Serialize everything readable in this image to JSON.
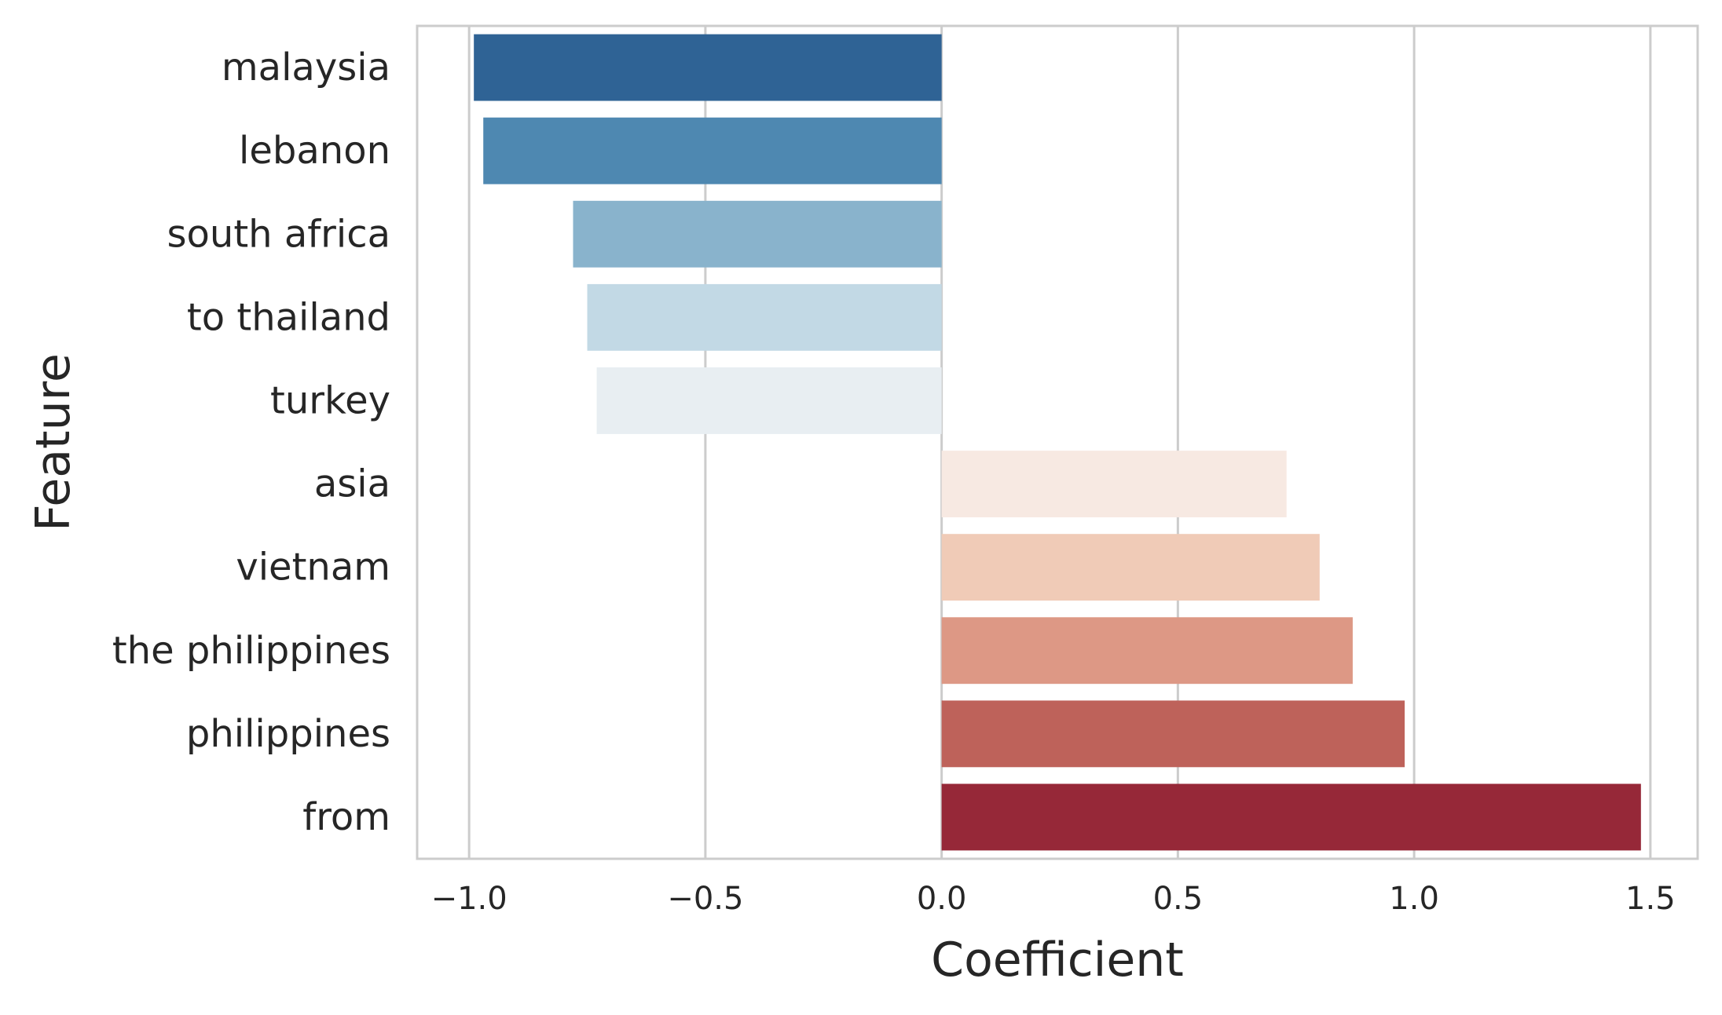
{
  "chart_data": {
    "type": "bar",
    "orientation": "horizontal",
    "title": "",
    "xlabel": "Coefficient",
    "ylabel": "Feature",
    "xlim": [
      -1.11,
      1.6
    ],
    "xticks": [
      -1.0,
      -0.5,
      0.0,
      0.5,
      1.0,
      1.5
    ],
    "xtick_labels": [
      "−1.0",
      "−0.5",
      "0.0",
      "0.5",
      "1.0",
      "1.5"
    ],
    "grid": "vertical",
    "legend": "none",
    "categories": [
      "malaysia",
      "lebanon",
      "south africa",
      "to thailand",
      "turkey",
      "asia",
      "vietnam",
      "the philippines",
      "philippines",
      "from"
    ],
    "values": [
      -0.99,
      -0.97,
      -0.78,
      -0.75,
      -0.73,
      0.73,
      0.8,
      0.87,
      0.98,
      1.48
    ],
    "colors": [
      "#2f6395",
      "#4e88b1",
      "#89b3cc",
      "#c2d9e5",
      "#e8eef2",
      "#f7e9e2",
      "#f0cbb7",
      "#dd9885",
      "#be625a",
      "#962838"
    ],
    "grid_color": "#cccccc",
    "spine_color": "#cccccc",
    "text_color": "#262626"
  }
}
